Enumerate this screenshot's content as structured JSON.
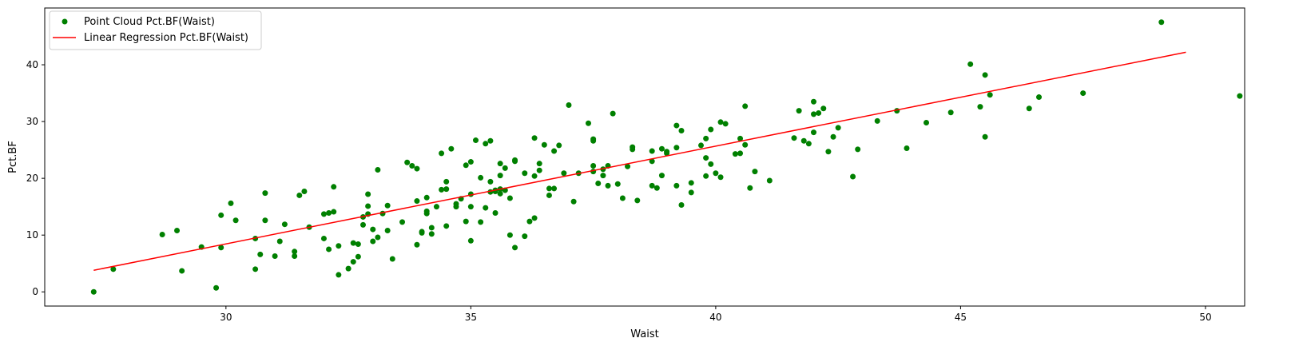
{
  "chart_data": {
    "type": "scatter",
    "xlabel": "Waist",
    "ylabel": "Pct.BF",
    "xlim": [
      26.3,
      50.8
    ],
    "ylim": [
      -2.5,
      50.0
    ],
    "xticks": [
      30,
      35,
      40,
      45,
      50
    ],
    "yticks": [
      0,
      10,
      20,
      30,
      40
    ],
    "grid": false,
    "legend_position": "top-left",
    "series": [
      {
        "name": "Point Cloud Pct.BF(Waist)",
        "kind": "scatter",
        "color": "#008000",
        "points": [
          [
            27.3,
            0.0
          ],
          [
            27.7,
            4.0
          ],
          [
            28.7,
            10.1
          ],
          [
            29.0,
            10.8
          ],
          [
            29.1,
            3.7
          ],
          [
            29.5,
            7.9
          ],
          [
            29.8,
            0.7
          ],
          [
            29.9,
            13.5
          ],
          [
            29.9,
            7.8
          ],
          [
            30.1,
            15.6
          ],
          [
            30.2,
            12.6
          ],
          [
            30.6,
            9.4
          ],
          [
            30.6,
            4.0
          ],
          [
            30.7,
            6.6
          ],
          [
            30.8,
            17.4
          ],
          [
            30.8,
            12.6
          ],
          [
            31.0,
            6.3
          ],
          [
            31.1,
            8.9
          ],
          [
            31.2,
            11.9
          ],
          [
            31.4,
            7.1
          ],
          [
            31.4,
            6.3
          ],
          [
            31.5,
            17.0
          ],
          [
            31.6,
            17.7
          ],
          [
            31.7,
            11.4
          ],
          [
            32.0,
            13.7
          ],
          [
            32.0,
            9.4
          ],
          [
            32.1,
            13.9
          ],
          [
            32.1,
            7.5
          ],
          [
            32.2,
            18.5
          ],
          [
            32.2,
            14.1
          ],
          [
            32.3,
            3.0
          ],
          [
            32.3,
            8.1
          ],
          [
            32.5,
            4.1
          ],
          [
            32.6,
            5.3
          ],
          [
            32.6,
            8.6
          ],
          [
            32.7,
            6.2
          ],
          [
            32.7,
            8.4
          ],
          [
            32.8,
            13.2
          ],
          [
            32.8,
            11.8
          ],
          [
            32.9,
            15.1
          ],
          [
            32.9,
            17.2
          ],
          [
            32.9,
            13.7
          ],
          [
            33.0,
            11.0
          ],
          [
            33.0,
            8.9
          ],
          [
            33.1,
            9.6
          ],
          [
            33.1,
            21.5
          ],
          [
            33.2,
            13.8
          ],
          [
            33.3,
            15.2
          ],
          [
            33.3,
            10.8
          ],
          [
            33.4,
            5.8
          ],
          [
            33.6,
            12.3
          ],
          [
            33.7,
            22.8
          ],
          [
            33.8,
            22.2
          ],
          [
            33.9,
            8.3
          ],
          [
            33.9,
            16.0
          ],
          [
            33.9,
            21.7
          ],
          [
            34.0,
            10.6
          ],
          [
            34.0,
            10.4
          ],
          [
            34.1,
            14.2
          ],
          [
            34.1,
            13.8
          ],
          [
            34.1,
            16.6
          ],
          [
            34.2,
            11.3
          ],
          [
            34.2,
            10.2
          ],
          [
            34.3,
            15.0
          ],
          [
            34.4,
            24.4
          ],
          [
            34.4,
            18.0
          ],
          [
            34.5,
            18.1
          ],
          [
            34.5,
            19.4
          ],
          [
            34.5,
            11.6
          ],
          [
            34.6,
            25.2
          ],
          [
            34.7,
            15.0
          ],
          [
            34.7,
            15.5
          ],
          [
            34.8,
            16.4
          ],
          [
            34.9,
            22.3
          ],
          [
            34.9,
            12.4
          ],
          [
            35.0,
            22.9
          ],
          [
            35.0,
            17.2
          ],
          [
            35.0,
            15.0
          ],
          [
            35.0,
            9.0
          ],
          [
            35.1,
            26.7
          ],
          [
            35.2,
            20.1
          ],
          [
            35.2,
            12.3
          ],
          [
            35.3,
            26.1
          ],
          [
            35.3,
            14.8
          ],
          [
            35.4,
            26.6
          ],
          [
            35.4,
            19.4
          ],
          [
            35.4,
            17.6
          ],
          [
            35.5,
            17.7
          ],
          [
            35.5,
            13.9
          ],
          [
            35.5,
            17.9
          ],
          [
            35.6,
            18.1
          ],
          [
            35.6,
            22.6
          ],
          [
            35.6,
            17.3
          ],
          [
            35.6,
            20.5
          ],
          [
            35.7,
            21.8
          ],
          [
            35.7,
            17.9
          ],
          [
            35.8,
            16.5
          ],
          [
            35.8,
            10.0
          ],
          [
            35.9,
            23.0
          ],
          [
            35.9,
            23.2
          ],
          [
            35.9,
            7.8
          ],
          [
            36.1,
            9.8
          ],
          [
            36.1,
            20.9
          ],
          [
            36.2,
            12.4
          ],
          [
            36.3,
            20.4
          ],
          [
            36.3,
            27.1
          ],
          [
            36.3,
            13.0
          ],
          [
            36.4,
            21.4
          ],
          [
            36.4,
            22.6
          ],
          [
            36.5,
            25.9
          ],
          [
            36.6,
            18.2
          ],
          [
            36.6,
            17.0
          ],
          [
            36.7,
            18.2
          ],
          [
            36.7,
            24.8
          ],
          [
            36.8,
            25.8
          ],
          [
            36.9,
            20.9
          ],
          [
            37.0,
            32.9
          ],
          [
            37.1,
            15.9
          ],
          [
            37.2,
            20.9
          ],
          [
            37.4,
            29.7
          ],
          [
            37.5,
            26.9
          ],
          [
            37.5,
            26.6
          ],
          [
            37.5,
            22.2
          ],
          [
            37.5,
            21.2
          ],
          [
            37.6,
            19.1
          ],
          [
            37.7,
            21.6
          ],
          [
            37.7,
            20.5
          ],
          [
            37.8,
            22.2
          ],
          [
            37.8,
            18.7
          ],
          [
            37.9,
            31.4
          ],
          [
            38.0,
            19.0
          ],
          [
            38.1,
            16.5
          ],
          [
            38.2,
            22.1
          ],
          [
            38.3,
            25.5
          ],
          [
            38.3,
            25.1
          ],
          [
            38.4,
            16.1
          ],
          [
            38.7,
            24.8
          ],
          [
            38.7,
            23.0
          ],
          [
            38.7,
            18.7
          ],
          [
            38.8,
            18.3
          ],
          [
            38.9,
            20.5
          ],
          [
            38.9,
            25.2
          ],
          [
            39.0,
            24.7
          ],
          [
            39.0,
            24.4
          ],
          [
            39.2,
            29.3
          ],
          [
            39.2,
            25.4
          ],
          [
            39.2,
            18.7
          ],
          [
            39.3,
            28.4
          ],
          [
            39.3,
            15.3
          ],
          [
            39.5,
            19.2
          ],
          [
            39.5,
            17.5
          ],
          [
            39.7,
            25.8
          ],
          [
            39.8,
            27.0
          ],
          [
            39.8,
            23.6
          ],
          [
            39.8,
            20.4
          ],
          [
            39.9,
            28.6
          ],
          [
            39.9,
            22.5
          ],
          [
            40.0,
            20.9
          ],
          [
            40.1,
            29.9
          ],
          [
            40.2,
            29.6
          ],
          [
            40.1,
            20.2
          ],
          [
            40.4,
            24.3
          ],
          [
            40.5,
            27.0
          ],
          [
            40.5,
            24.4
          ],
          [
            40.6,
            32.7
          ],
          [
            40.6,
            25.9
          ],
          [
            40.7,
            18.3
          ],
          [
            40.8,
            21.2
          ],
          [
            41.1,
            19.6
          ],
          [
            41.6,
            27.1
          ],
          [
            41.7,
            31.9
          ],
          [
            41.8,
            26.6
          ],
          [
            41.9,
            26.1
          ],
          [
            42.0,
            28.1
          ],
          [
            42.0,
            33.5
          ],
          [
            42.0,
            31.3
          ],
          [
            42.1,
            31.5
          ],
          [
            42.2,
            32.3
          ],
          [
            42.3,
            24.7
          ],
          [
            42.4,
            27.3
          ],
          [
            42.5,
            28.9
          ],
          [
            42.8,
            20.3
          ],
          [
            42.9,
            25.1
          ],
          [
            43.3,
            30.1
          ],
          [
            43.7,
            31.9
          ],
          [
            43.9,
            25.3
          ],
          [
            44.3,
            29.8
          ],
          [
            44.8,
            31.6
          ],
          [
            45.2,
            40.1
          ],
          [
            45.4,
            32.6
          ],
          [
            45.5,
            38.2
          ],
          [
            45.5,
            27.3
          ],
          [
            45.6,
            34.7
          ],
          [
            46.4,
            32.3
          ],
          [
            46.6,
            34.3
          ],
          [
            47.5,
            35.0
          ],
          [
            49.1,
            47.5
          ],
          [
            50.7,
            34.5
          ]
        ]
      },
      {
        "name": "Linear Regression Pct.BF(Waist)",
        "kind": "line",
        "color": "#ff0000",
        "line": {
          "x": [
            27.3,
            49.6
          ],
          "y": [
            3.8,
            42.2
          ]
        }
      }
    ]
  }
}
